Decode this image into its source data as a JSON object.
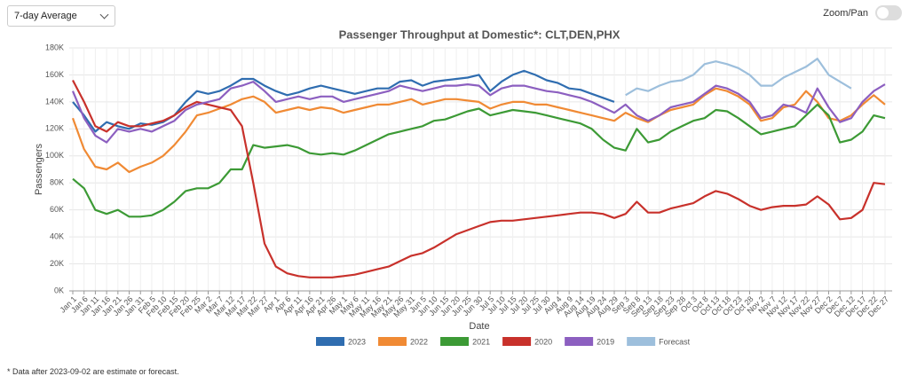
{
  "controls": {
    "average_select": "7-day Average",
    "zoom_label": "Zoom/Pan"
  },
  "chart_data": {
    "type": "line",
    "title": "Passenger Throughput at Domestic*: CLT,DEN,PHX",
    "x_label": "Date",
    "y_label": "Passengers",
    "categories": [
      "Jan 1",
      "Jan 6",
      "Jan 11",
      "Jan 16",
      "Jan 21",
      "Jan 26",
      "Jan 31",
      "Feb 5",
      "Feb 10",
      "Feb 15",
      "Feb 20",
      "Feb 25",
      "Mar 2",
      "Mar 7",
      "Mar 12",
      "Mar 17",
      "Mar 22",
      "Mar 27",
      "Apr 1",
      "Apr 6",
      "Apr 11",
      "Apr 16",
      "Apr 21",
      "Apr 26",
      "May 1",
      "May 6",
      "May 11",
      "May 16",
      "May 21",
      "May 26",
      "May 31",
      "Jun 5",
      "Jun 10",
      "Jun 15",
      "Jun 20",
      "Jun 25",
      "Jun 30",
      "Jul 5",
      "Jul 10",
      "Jul 15",
      "Jul 20",
      "Jul 25",
      "Jul 30",
      "Aug 4",
      "Aug 9",
      "Aug 14",
      "Aug 19",
      "Aug 24",
      "Aug 29",
      "Sep 3",
      "Sep 8",
      "Sep 13",
      "Sep 18",
      "Sep 23",
      "Sep 28",
      "Oct 3",
      "Oct 8",
      "Oct 13",
      "Oct 18",
      "Oct 23",
      "Oct 28",
      "Nov 2",
      "Nov 7",
      "Nov 12",
      "Nov 17",
      "Nov 22",
      "Nov 27",
      "Dec 2",
      "Dec 7",
      "Dec 12",
      "Dec 17",
      "Dec 22",
      "Dec 27"
    ],
    "ylim": [
      0,
      180000
    ],
    "yticks": [
      {
        "value": 0,
        "label": "0K"
      },
      {
        "value": 20000,
        "label": "20K"
      },
      {
        "value": 40000,
        "label": "40K"
      },
      {
        "value": 60000,
        "label": "60K"
      },
      {
        "value": 80000,
        "label": "80K"
      },
      {
        "value": 100000,
        "label": "100K"
      },
      {
        "value": 120000,
        "label": "120K"
      },
      {
        "value": 140000,
        "label": "140K"
      },
      {
        "value": 160000,
        "label": "160K"
      },
      {
        "value": 180000,
        "label": "180K"
      }
    ],
    "grid": true,
    "series": [
      {
        "name": "2023",
        "color": "#2f6db0",
        "values": [
          140000,
          130000,
          118000,
          125000,
          122000,
          120000,
          124000,
          123000,
          125000,
          130000,
          140000,
          148000,
          146000,
          148000,
          152000,
          157000,
          157000,
          152000,
          148000,
          145000,
          147000,
          150000,
          152000,
          150000,
          148000,
          146000,
          148000,
          150000,
          150000,
          155000,
          156000,
          152000,
          155000,
          156000,
          157000,
          158000,
          160000,
          148000,
          155000,
          160000,
          163000,
          160000,
          156000,
          154000,
          150000,
          149000,
          146000,
          143000,
          140000,
          null,
          null,
          null,
          null,
          null,
          null,
          null,
          null,
          null,
          null,
          null,
          null,
          null,
          null,
          null,
          null,
          null,
          null,
          null,
          null,
          null,
          null,
          null,
          null
        ]
      },
      {
        "name": "2022",
        "color": "#f08a34",
        "values": [
          128000,
          105000,
          92000,
          90000,
          95000,
          88000,
          92000,
          95000,
          100000,
          108000,
          118000,
          130000,
          132000,
          135000,
          138000,
          142000,
          144000,
          140000,
          132000,
          134000,
          136000,
          134000,
          136000,
          135000,
          132000,
          134000,
          136000,
          138000,
          138000,
          140000,
          142000,
          138000,
          140000,
          142000,
          142000,
          141000,
          140000,
          135000,
          138000,
          140000,
          140000,
          138000,
          138000,
          136000,
          134000,
          132000,
          130000,
          128000,
          126000,
          132000,
          128000,
          125000,
          130000,
          134000,
          136000,
          138000,
          145000,
          150000,
          148000,
          144000,
          138000,
          126000,
          128000,
          136000,
          138000,
          148000,
          140000,
          128000,
          126000,
          130000,
          138000,
          145000,
          138000
        ]
      },
      {
        "name": "2021",
        "color": "#3c9a35",
        "values": [
          83000,
          76000,
          60000,
          57000,
          60000,
          55000,
          55000,
          56000,
          60000,
          66000,
          74000,
          76000,
          76000,
          80000,
          90000,
          90000,
          108000,
          106000,
          107000,
          108000,
          106000,
          102000,
          101000,
          102000,
          101000,
          104000,
          108000,
          112000,
          116000,
          118000,
          120000,
          122000,
          126000,
          127000,
          130000,
          133000,
          135000,
          130000,
          132000,
          134000,
          133000,
          132000,
          130000,
          128000,
          126000,
          124000,
          120000,
          112000,
          106000,
          104000,
          120000,
          110000,
          112000,
          118000,
          122000,
          126000,
          128000,
          134000,
          133000,
          128000,
          122000,
          116000,
          118000,
          120000,
          122000,
          130000,
          138000,
          130000,
          110000,
          112000,
          118000,
          130000,
          128000
        ]
      },
      {
        "name": "2020",
        "color": "#c8312b",
        "values": [
          156000,
          140000,
          122000,
          118000,
          125000,
          122000,
          122000,
          124000,
          126000,
          130000,
          136000,
          140000,
          138000,
          136000,
          134000,
          122000,
          80000,
          35000,
          18000,
          13000,
          11000,
          10000,
          10000,
          10000,
          11000,
          12000,
          14000,
          16000,
          18000,
          22000,
          26000,
          28000,
          32000,
          37000,
          42000,
          45000,
          48000,
          51000,
          52000,
          52000,
          53000,
          54000,
          55000,
          56000,
          57000,
          58000,
          58000,
          57000,
          54000,
          57000,
          66000,
          58000,
          58000,
          61000,
          63000,
          65000,
          70000,
          74000,
          72000,
          68000,
          63000,
          60000,
          62000,
          63000,
          63000,
          64000,
          70000,
          64000,
          53000,
          54000,
          60000,
          80000,
          79000
        ]
      },
      {
        "name": "2019",
        "color": "#8c5fc0",
        "values": [
          148000,
          128000,
          115000,
          110000,
          120000,
          118000,
          120000,
          118000,
          122000,
          126000,
          134000,
          138000,
          140000,
          142000,
          150000,
          152000,
          155000,
          148000,
          140000,
          142000,
          144000,
          142000,
          144000,
          144000,
          140000,
          142000,
          144000,
          146000,
          148000,
          152000,
          150000,
          148000,
          150000,
          152000,
          152000,
          153000,
          152000,
          145000,
          150000,
          152000,
          152000,
          150000,
          148000,
          147000,
          145000,
          143000,
          140000,
          136000,
          132000,
          138000,
          130000,
          126000,
          130000,
          136000,
          138000,
          140000,
          146000,
          152000,
          150000,
          146000,
          140000,
          128000,
          130000,
          138000,
          136000,
          132000,
          150000,
          136000,
          125000,
          128000,
          140000,
          148000,
          153000
        ]
      },
      {
        "name": "Forecast",
        "color": "#9dbfdc",
        "values": [
          null,
          null,
          null,
          null,
          null,
          null,
          null,
          null,
          null,
          null,
          null,
          null,
          null,
          null,
          null,
          null,
          null,
          null,
          null,
          null,
          null,
          null,
          null,
          null,
          null,
          null,
          null,
          null,
          null,
          null,
          null,
          null,
          null,
          null,
          null,
          null,
          null,
          null,
          null,
          null,
          null,
          null,
          null,
          null,
          null,
          null,
          null,
          null,
          null,
          145000,
          150000,
          148000,
          152000,
          155000,
          156000,
          160000,
          168000,
          170000,
          168000,
          165000,
          160000,
          152000,
          152000,
          158000,
          162000,
          166000,
          172000,
          160000,
          155000,
          150000,
          null,
          null,
          null
        ]
      }
    ]
  },
  "footnote": "* Data after 2023-09-02 are estimate or forecast."
}
